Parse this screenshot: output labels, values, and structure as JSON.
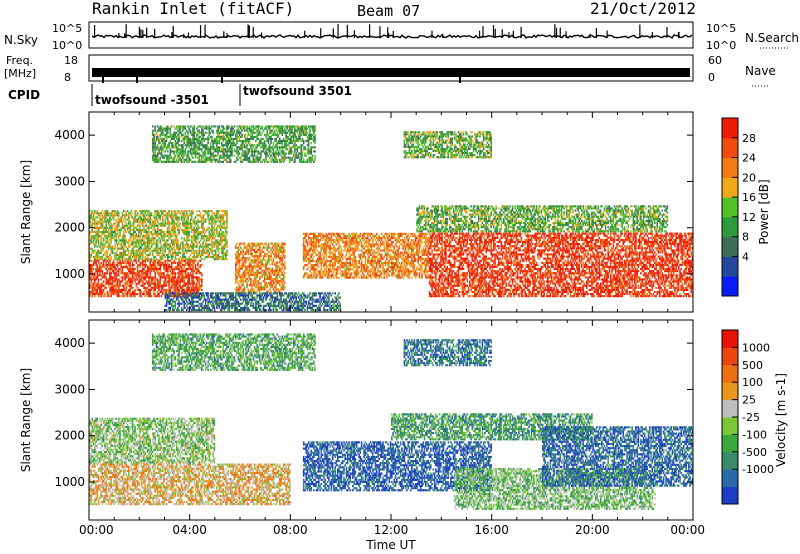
{
  "header": {
    "station": "Rankin Inlet (fitACF)",
    "beam": "Beam 07",
    "date": "21/Oct/2012"
  },
  "status_panels": {
    "nsky_label": "N.Sky",
    "nsky_ticks": [
      "10^5",
      "10^0"
    ],
    "nsearch_label": "N.Search",
    "nsearch_ticks": [
      "10^5",
      "10^0"
    ],
    "freq_label": "Freq.",
    "freq_unit": "[MHz]",
    "freq_ticks": [
      "18",
      "8"
    ],
    "nave_label": "Nave",
    "nave_ticks": [
      "60",
      "0"
    ],
    "cpid_label": "CPID",
    "cpid_entries": [
      {
        "label": "twofsound -3501",
        "start_hour": 0
      },
      {
        "label": "twofsound 3501",
        "start_hour": 6.0
      }
    ]
  },
  "chart_data": [
    {
      "type": "heatmap",
      "name": "power",
      "ylabel": "Slant Range [km]",
      "yticks": [
        "4000",
        "3000",
        "2000",
        "1000"
      ],
      "ylim": [
        180,
        4500
      ],
      "xlim": [
        0,
        24
      ],
      "colorbar_label": "Power [dB]",
      "colorbar_ticks": [
        "28",
        "24",
        "20",
        "16",
        "12",
        "8",
        "4"
      ],
      "colorbar_colors": [
        "#0a1cf5",
        "#24489f",
        "#3d6e5a",
        "#2f9a3d",
        "#55bf2a",
        "#f0a818",
        "#f07c12",
        "#f04a0c",
        "#ee1a0a"
      ],
      "echo_bands": [
        {
          "start_h": 0.0,
          "end_h": 4.5,
          "r_lo": 500,
          "r_hi": 1300,
          "level": 0.88
        },
        {
          "start_h": 0.0,
          "end_h": 5.5,
          "r_lo": 1300,
          "r_hi": 2400,
          "level": 0.55
        },
        {
          "start_h": 5.8,
          "end_h": 7.8,
          "r_lo": 600,
          "r_hi": 1700,
          "level": 0.7
        },
        {
          "start_h": 8.5,
          "end_h": 13.5,
          "r_lo": 900,
          "r_hi": 1900,
          "level": 0.72
        },
        {
          "start_h": 13.5,
          "end_h": 24.0,
          "r_lo": 500,
          "r_hi": 1900,
          "level": 0.9
        },
        {
          "start_h": 13.0,
          "end_h": 23.0,
          "r_lo": 1900,
          "r_hi": 2500,
          "level": 0.45
        },
        {
          "start_h": 3.0,
          "end_h": 10.0,
          "r_lo": 200,
          "r_hi": 600,
          "level": 0.25
        },
        {
          "start_h": 2.5,
          "end_h": 9.0,
          "r_lo": 3400,
          "r_hi": 4200,
          "level": 0.4
        },
        {
          "start_h": 12.5,
          "end_h": 16.0,
          "r_lo": 3500,
          "r_hi": 4100,
          "level": 0.45
        }
      ]
    },
    {
      "type": "heatmap",
      "name": "velocity",
      "ylabel": "Slant Range [km]",
      "yticks": [
        "4000",
        "3000",
        "2000",
        "1000"
      ],
      "ylim": [
        180,
        4500
      ],
      "xlim": [
        0,
        24
      ],
      "xlabel": "Time UT",
      "xticks": [
        "00:00",
        "04:00",
        "08:00",
        "12:00",
        "16:00",
        "20:00",
        "00:00"
      ],
      "colorbar_label": "Velocity [m s-1]",
      "colorbar_ticks": [
        "1000",
        "500",
        "100",
        "25",
        "-25",
        "-100",
        "-500",
        "-1000"
      ],
      "colorbar_colors": [
        "#1e3ec8",
        "#2b6aa8",
        "#3a8a6c",
        "#3aa83a",
        "#7ac838",
        "#bebebe",
        "#e8961e",
        "#ec7014",
        "#ec4610",
        "#ea1208"
      ],
      "echo_bands": [
        {
          "start_h": 0.0,
          "end_h": 8.0,
          "r_lo": 500,
          "r_hi": 1400,
          "level": 0.62
        },
        {
          "start_h": 0.0,
          "end_h": 5.0,
          "r_lo": 1400,
          "r_hi": 2400,
          "level": 0.45
        },
        {
          "start_h": 8.5,
          "end_h": 16.0,
          "r_lo": 800,
          "r_hi": 1900,
          "level": 0.12
        },
        {
          "start_h": 12.0,
          "end_h": 20.0,
          "r_lo": 1900,
          "r_hi": 2500,
          "level": 0.3
        },
        {
          "start_h": 14.5,
          "end_h": 22.5,
          "r_lo": 400,
          "r_hi": 1300,
          "level": 0.42
        },
        {
          "start_h": 18.0,
          "end_h": 24.0,
          "r_lo": 900,
          "r_hi": 2200,
          "level": 0.15
        },
        {
          "start_h": 2.5,
          "end_h": 9.0,
          "r_lo": 3400,
          "r_hi": 4200,
          "level": 0.35
        },
        {
          "start_h": 12.5,
          "end_h": 16.0,
          "r_lo": 3500,
          "r_hi": 4100,
          "level": 0.2
        }
      ]
    }
  ]
}
